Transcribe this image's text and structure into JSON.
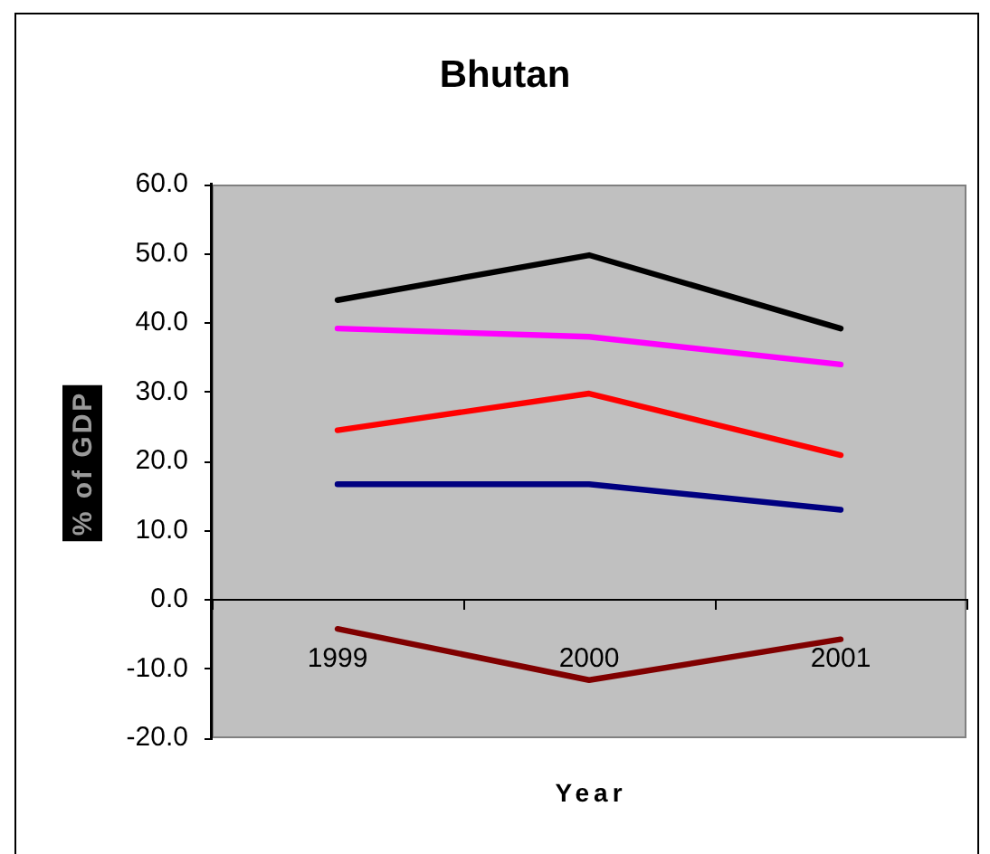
{
  "chart_data": {
    "type": "line",
    "title": "Bhutan",
    "xlabel": "Year",
    "ylabel": "% of GDP",
    "categories": [
      "1999",
      "2000",
      "2001"
    ],
    "series": [
      {
        "color": "#000000",
        "values": [
          43.3,
          49.8,
          39.2
        ]
      },
      {
        "color": "#ff00ff",
        "values": [
          39.2,
          38.0,
          34.0
        ]
      },
      {
        "color": "#ff0000",
        "values": [
          24.5,
          29.8,
          20.9
        ]
      },
      {
        "color": "#000080",
        "values": [
          16.7,
          16.7,
          13.0
        ]
      },
      {
        "color": "#800000",
        "values": [
          -4.2,
          -11.6,
          -5.7
        ]
      }
    ],
    "ylim": [
      -20,
      60
    ],
    "yticks": [
      {
        "value": -20,
        "label": "-20.0"
      },
      {
        "value": -10,
        "label": "-10.0"
      },
      {
        "value": 0,
        "label": "0.0"
      },
      {
        "value": 10,
        "label": "10.0"
      },
      {
        "value": 20,
        "label": "20.0"
      },
      {
        "value": 30,
        "label": "30.0"
      },
      {
        "value": 40,
        "label": "40.0"
      },
      {
        "value": 50,
        "label": "50.0"
      },
      {
        "value": 60,
        "label": "60.0"
      }
    ],
    "grid": false,
    "legend": false,
    "marker": "none",
    "line_style": "solid"
  }
}
